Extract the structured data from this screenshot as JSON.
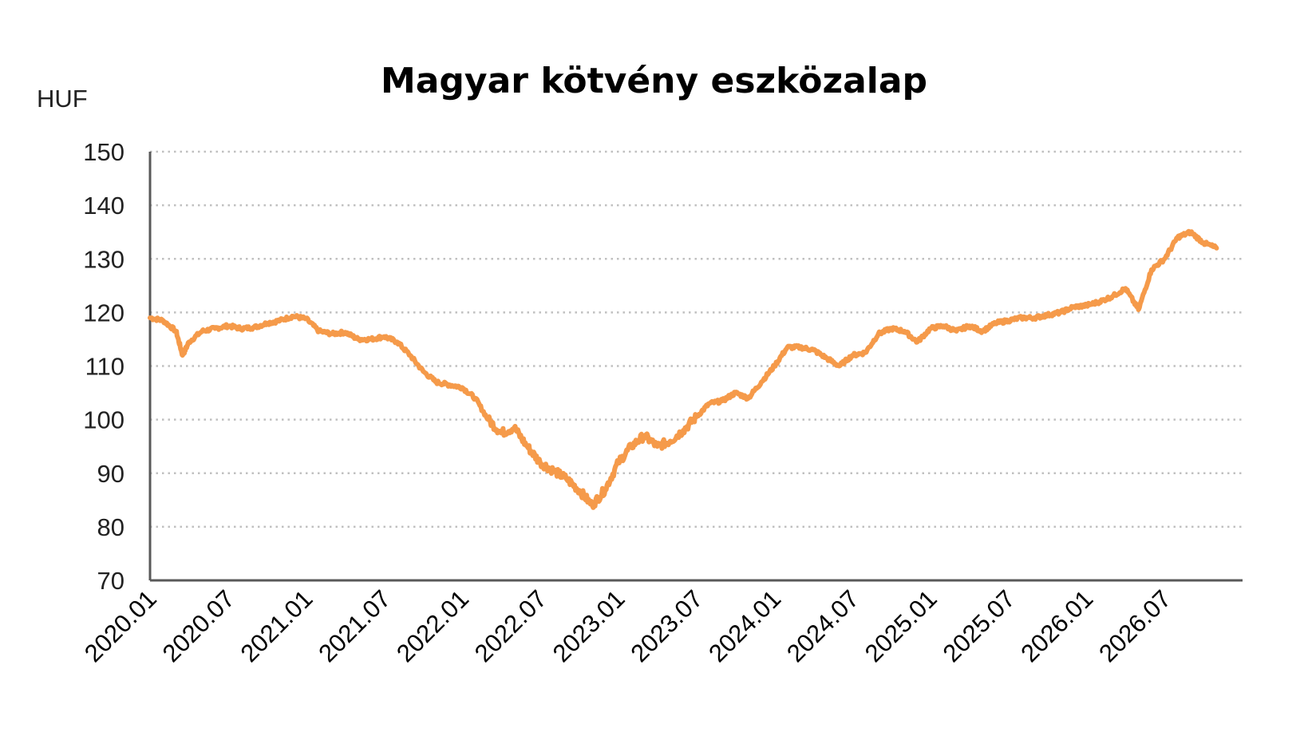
{
  "chart_data": {
    "type": "line",
    "title": "Magyar kötvény eszközalap",
    "ylabel": "HUF",
    "xlabel": "",
    "ylim": [
      70,
      150
    ],
    "yticks": [
      70,
      80,
      90,
      100,
      110,
      120,
      130,
      140,
      150
    ],
    "xlim": [
      "2020.01",
      "2026.07"
    ],
    "x_tick_labels": [
      "2020.01",
      "2020.07",
      "2021.01",
      "2021.07",
      "2022.01",
      "2022.07",
      "2023.01",
      "2023.07",
      "2024.01",
      "2024.07",
      "2025.01",
      "2025.07",
      "2026.01",
      "2026.07"
    ],
    "grid": "horizontal dotted",
    "line_color": "#f59a4a",
    "series": [
      {
        "x": [
          "2020.01",
          "2020.02",
          "2020.03",
          "2020.03",
          "2020.04",
          "2020.05",
          "2020.06",
          "2020.07",
          "2020.08",
          "2020.09",
          "2020.10",
          "2020.11",
          "2020.12",
          "2021.01",
          "2021.02",
          "2021.03",
          "2021.04",
          "2021.05",
          "2021.06",
          "2021.07",
          "2021.08",
          "2021.09",
          "2021.10",
          "2021.11",
          "2021.12",
          "2022.01",
          "2022.02",
          "2022.03",
          "2022.04",
          "2022.05",
          "2022.06",
          "2022.07",
          "2022.08",
          "2022.09",
          "2022.10",
          "2022.11",
          "2022.12",
          "2023.01",
          "2023.02",
          "2023.03",
          "2023.04",
          "2023.05",
          "2023.06",
          "2023.07",
          "2023.08",
          "2023.09",
          "2023.10",
          "2023.11",
          "2023.12",
          "2024.01",
          "2024.02",
          "2024.03",
          "2024.04",
          "2024.05",
          "2024.06",
          "2024.07",
          "2024.08",
          "2024.09",
          "2024.10",
          "2024.11",
          "2024.12",
          "2025.01",
          "2025.02",
          "2025.03",
          "2025.04",
          "2025.05",
          "2025.06",
          "2025.07",
          "2025.08",
          "2025.09",
          "2025.10",
          "2025.11",
          "2025.12",
          "2026.01",
          "2026.02",
          "2026.03",
          "2026.04",
          "2026.05",
          "2026.06",
          "2026.07",
          "2026.08",
          "2026.09",
          "2026.10",
          "2026.11"
        ],
        "values": [
          119,
          118.5,
          116.5,
          112,
          114.5,
          116.5,
          117,
          117.5,
          117,
          117.2,
          118,
          118.5,
          119.3,
          118.8,
          116.5,
          116,
          116.3,
          115,
          115,
          115.5,
          114.5,
          112,
          109,
          107,
          106.5,
          106,
          104,
          100,
          97.5,
          98.5,
          95,
          92,
          90.5,
          89,
          86.8,
          84,
          87,
          92,
          95,
          97,
          95,
          96,
          98,
          100.5,
          103,
          103.5,
          105,
          104,
          107,
          110,
          113.5,
          113.5,
          113,
          111.5,
          110,
          112,
          112.5,
          116,
          117,
          116.5,
          114.5,
          117,
          117.5,
          116.5,
          117.5,
          116.5,
          118,
          118.5,
          119,
          119,
          119.5,
          120,
          121,
          121.3,
          122,
          123,
          124.5,
          120.5,
          128,
          130,
          134,
          135,
          133,
          132
        ]
      }
    ]
  }
}
